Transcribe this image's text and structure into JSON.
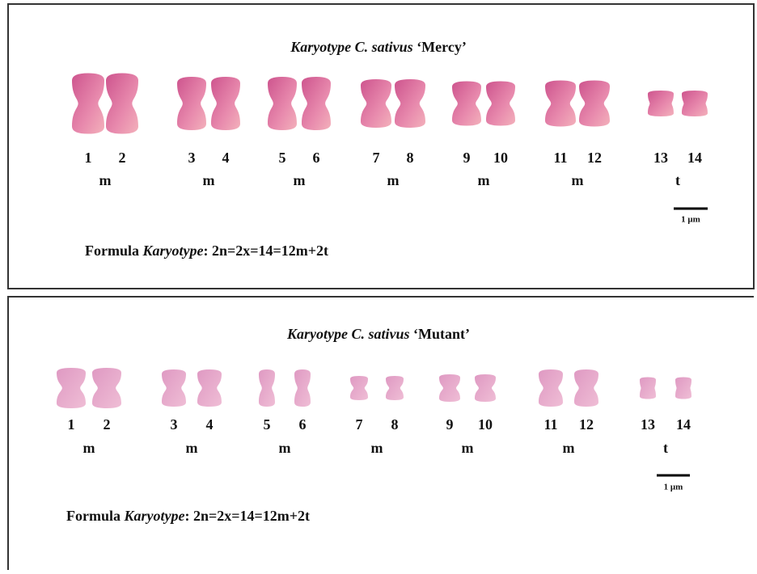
{
  "panels": [
    {
      "title": {
        "italic": "Karyotype C. sativus",
        "bold": "‘Mercy’"
      },
      "pairs": [
        {
          "labels": [
            "1",
            "2"
          ],
          "type": "m"
        },
        {
          "labels": [
            "3",
            "4"
          ],
          "type": "m"
        },
        {
          "labels": [
            "5",
            "6"
          ],
          "type": "m"
        },
        {
          "labels": [
            "7",
            "8"
          ],
          "type": "m"
        },
        {
          "labels": [
            "9",
            "10"
          ],
          "type": "m"
        },
        {
          "labels": [
            "11",
            "12"
          ],
          "type": "m"
        },
        {
          "labels": [
            "13",
            "14"
          ],
          "type": "t"
        }
      ],
      "scale_bar": "1 μm",
      "formula": {
        "prefix": "Formula",
        "italic": "Karyotype",
        "suffix": ": 2n=2x=14=12m+2t"
      }
    },
    {
      "title": {
        "italic": "Karyotype C. sativus",
        "bold": "‘Mutant’"
      },
      "pairs": [
        {
          "labels": [
            "1",
            "2"
          ],
          "type": "m"
        },
        {
          "labels": [
            "3",
            "4"
          ],
          "type": "m"
        },
        {
          "labels": [
            "5",
            "6"
          ],
          "type": "m"
        },
        {
          "labels": [
            "7",
            "8"
          ],
          "type": "m"
        },
        {
          "labels": [
            "9",
            "10"
          ],
          "type": "m"
        },
        {
          "labels": [
            "11",
            "12"
          ],
          "type": "m"
        },
        {
          "labels": [
            "13",
            "14"
          ],
          "type": "t"
        }
      ],
      "scale_bar": "1 μm",
      "formula": {
        "prefix": "Formula",
        "italic": "Karyotype",
        "suffix": ": 2n=2x=14=12m+2t"
      }
    }
  ]
}
